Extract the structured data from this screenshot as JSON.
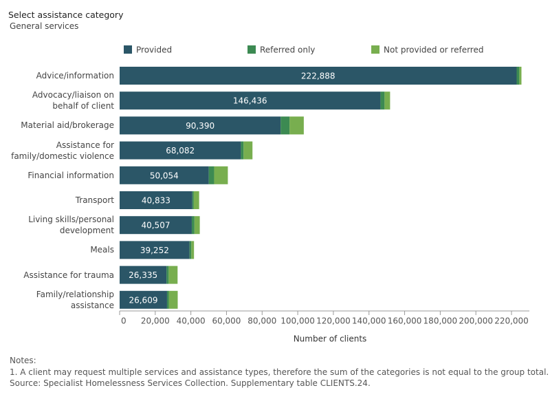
{
  "header": {
    "title": "Select assistance category",
    "selection": "General services"
  },
  "chart_data": {
    "type": "stacked-bar-horizontal",
    "x_label": "Number of clients",
    "categories": [
      "Advice/information",
      "Advocacy/liaison on behalf of client",
      "Material aid/brokerage",
      "Assistance for family/domestic violence",
      "Financial information",
      "Transport",
      "Living skills/personal development",
      "Meals",
      "Assistance for trauma",
      "Family/relationship assistance"
    ],
    "series": [
      {
        "name": "Provided",
        "color": "#2b5667",
        "values": [
          222888,
          146436,
          90390,
          68082,
          50054,
          40833,
          40507,
          39252,
          26335,
          26609
        ],
        "value_labels": [
          "222,888",
          "146,436",
          "90,390",
          "68,082",
          "50,054",
          "40,833",
          "40,507",
          "39,252",
          "26,335",
          "26,609"
        ]
      },
      {
        "name": "Referred only",
        "color": "#3c8a52",
        "values": [
          1500,
          2300,
          5000,
          1500,
          3000,
          800,
          1500,
          1000,
          1200,
          1000
        ]
      },
      {
        "name": "Not provided  or referred",
        "color": "#78ae4f",
        "values": [
          1200,
          3100,
          8000,
          5000,
          7700,
          3000,
          3000,
          1500,
          5000,
          5000
        ]
      }
    ],
    "xlim": [
      0,
      225000
    ],
    "xticks": [
      0,
      {
        "value": 20000,
        "label": "20,000"
      },
      {
        "value": 40000,
        "label": "40,000"
      },
      {
        "value": 60000,
        "label": "60,000"
      },
      {
        "value": 80000,
        "label": "80,000"
      },
      {
        "value": 100000,
        "label": "100,000"
      },
      {
        "value": 120000,
        "label": "120,000"
      },
      {
        "value": 140000,
        "label": "140,000"
      },
      {
        "value": 160000,
        "label": "160,000"
      },
      {
        "value": 180000,
        "label": "180,000"
      },
      {
        "value": 200000,
        "label": "200,000"
      },
      {
        "value": 220000,
        "label": "220,000"
      }
    ]
  },
  "notes": {
    "heading": "Notes:",
    "lines": [
      "1. A client may request multiple services and assistance types, therefore the sum of the categories is not equal to the group total.",
      "Source: Specialist Homelessness Services Collection. Supplementary table CLIENTS.24."
    ]
  }
}
